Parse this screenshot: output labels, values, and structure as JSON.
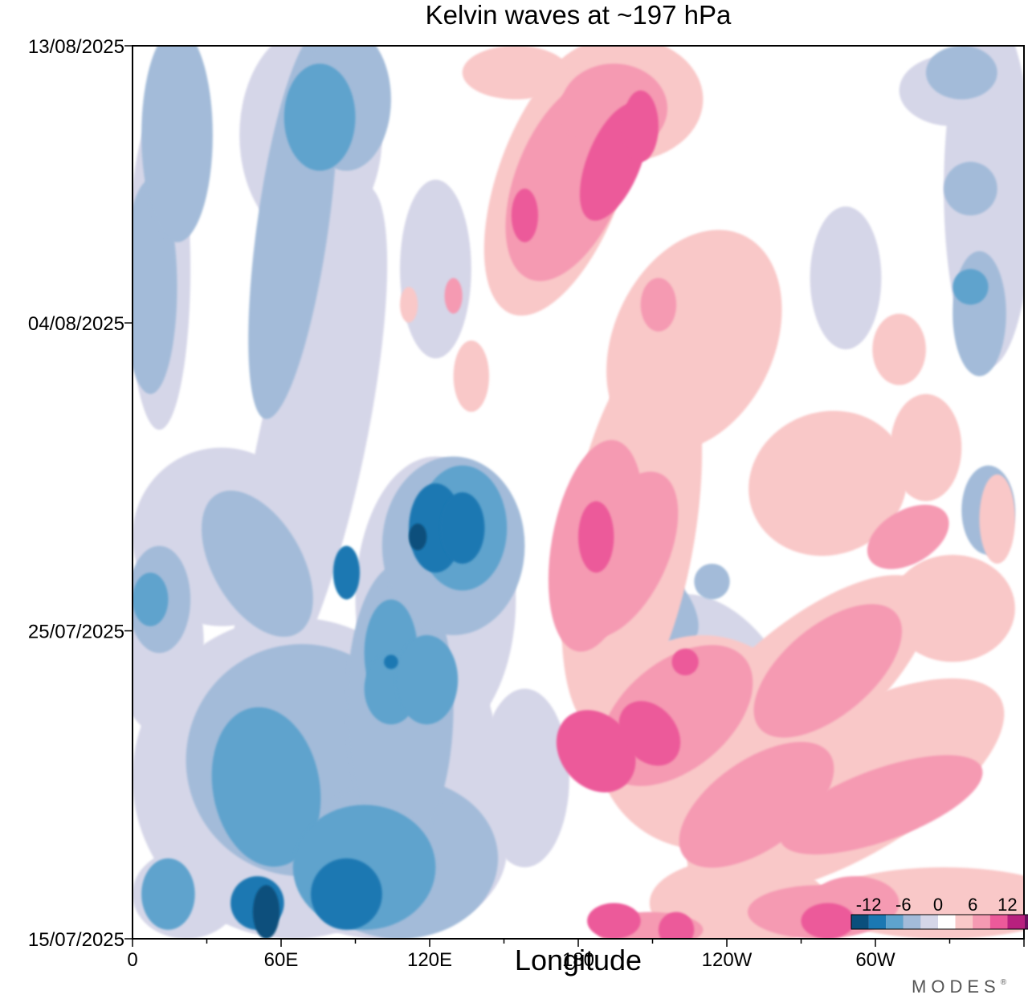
{
  "chart_data": {
    "type": "heatmap",
    "title": "Kelvin waves at ~197 hPa",
    "xlabel": "Longitude",
    "ylabel": "",
    "x_ticks": [
      "0",
      "60E",
      "120E",
      "180",
      "120W",
      "60W"
    ],
    "y_ticks": [
      "15/07/2025",
      "25/07/2025",
      "04/08/2025",
      "13/08/2025"
    ],
    "xlim": [
      0,
      360
    ],
    "ylim": [
      "15/07/2025",
      "13/08/2025"
    ],
    "colorbar": {
      "tick_labels": [
        "-12",
        "-6",
        "0",
        "6",
        "12"
      ],
      "levels": [
        -15,
        -12,
        -9,
        -6,
        -3,
        0,
        3,
        6,
        9,
        12,
        15
      ],
      "colors": [
        "#0b4f7c",
        "#1b78b2",
        "#5ea3cd",
        "#a3bbd9",
        "#d5d6e8",
        "#ffffff",
        "#f9c8c8",
        "#f59ab2",
        "#ec5a9a",
        "#b8207e",
        "#6a0f5f"
      ],
      "placement": "bottom-right"
    },
    "features": [
      {
        "sign": "negative",
        "level": -9,
        "lon": 55,
        "date": "18/07/2025"
      },
      {
        "sign": "negative",
        "level": -9,
        "lon": 118,
        "date": "29/07/2025"
      },
      {
        "sign": "negative",
        "level": -6,
        "lon": 85,
        "date": "28/07/2025"
      },
      {
        "sign": "negative",
        "level": -6,
        "lon": 75,
        "date": "11/08/2025"
      },
      {
        "sign": "positive",
        "level": 9,
        "lon": 182,
        "date": "20/07/2025"
      },
      {
        "sign": "positive",
        "level": 9,
        "lon": 185,
        "date": "29/07/2025"
      },
      {
        "sign": "positive",
        "level": 9,
        "lon": 195,
        "date": "10/08/2025"
      },
      {
        "sign": "positive",
        "level": 6,
        "lon": 280,
        "date": "27/07/2025"
      }
    ]
  },
  "branding": {
    "text": "MODES",
    "mark": "®"
  }
}
